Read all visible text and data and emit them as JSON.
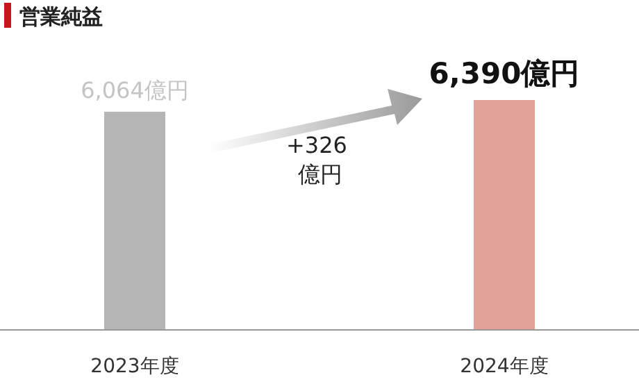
{
  "chart_data": {
    "type": "bar",
    "title": "営業純益",
    "categories": [
      "2023年度",
      "2024年度"
    ],
    "values": [
      6064,
      6390
    ],
    "colors": [
      "#b5b5b5",
      "#e0a39a"
    ],
    "value_labels": [
      "6,064億円",
      "6,390億円"
    ],
    "annotations": [
      "+326 億円"
    ]
  }
}
